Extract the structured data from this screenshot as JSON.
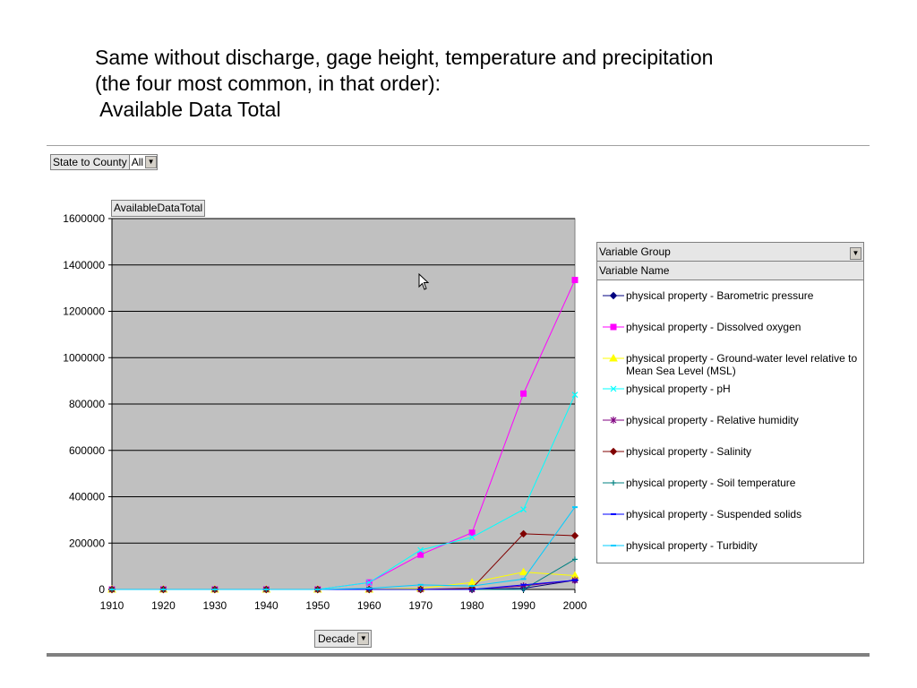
{
  "slide": {
    "title_line1": "Same without discharge, gage height, temperature and precipitation",
    "title_line2": "(the four most common, in that order):",
    "title_line3": " Available Data Total"
  },
  "pivot": {
    "page_field_label": "State to County",
    "page_field_value": "All",
    "data_field_label": "AvailableDataTotal",
    "category_field_label": "Decade",
    "legend_group_label": "Variable Group",
    "legend_name_label": "Variable Name"
  },
  "chart_data": {
    "type": "line",
    "x": [
      "1910",
      "1920",
      "1930",
      "1940",
      "1950",
      "1960",
      "1970",
      "1980",
      "1990",
      "2000"
    ],
    "ylim": [
      0,
      1600000
    ],
    "yticks": [
      "0",
      "200000",
      "400000",
      "600000",
      "800000",
      "1000000",
      "1200000",
      "1400000",
      "1600000"
    ],
    "grid": true,
    "plot_background": "#c0c0c0",
    "legend_position": "right",
    "series": [
      {
        "name": "physical property - Barometric pressure",
        "color": "#000080",
        "marker": "diamond",
        "values": [
          0,
          0,
          0,
          0,
          0,
          0,
          0,
          0,
          5000,
          40000
        ]
      },
      {
        "name": "physical property - Dissolved oxygen",
        "color": "#ff00ff",
        "marker": "square",
        "values": [
          0,
          0,
          0,
          0,
          0,
          30000,
          150000,
          245000,
          845000,
          1335000
        ]
      },
      {
        "name": "physical property - Ground-water level relative to Mean Sea Level (MSL)",
        "color": "#ffff00",
        "marker": "triangle",
        "values": [
          0,
          0,
          0,
          0,
          0,
          0,
          5000,
          30000,
          75000,
          60000
        ]
      },
      {
        "name": "physical property - pH",
        "color": "#00ffff",
        "marker": "x",
        "values": [
          0,
          0,
          0,
          0,
          0,
          30000,
          170000,
          225000,
          345000,
          840000
        ]
      },
      {
        "name": "physical property - Relative humidity",
        "color": "#800080",
        "marker": "star",
        "values": [
          0,
          0,
          0,
          0,
          0,
          0,
          0,
          0,
          15000,
          40000
        ]
      },
      {
        "name": "physical property - Salinity",
        "color": "#800000",
        "marker": "diamond",
        "values": [
          0,
          0,
          0,
          0,
          0,
          0,
          0,
          5000,
          240000,
          232000
        ]
      },
      {
        "name": "physical property - Soil temperature",
        "color": "#008080",
        "marker": "plus",
        "values": [
          0,
          0,
          0,
          0,
          0,
          0,
          0,
          0,
          0,
          130000
        ]
      },
      {
        "name": "physical property - Suspended solids",
        "color": "#0000ff",
        "marker": "dash",
        "values": [
          0,
          0,
          0,
          0,
          0,
          0,
          0,
          0,
          20000,
          40000
        ]
      },
      {
        "name": "physical property - Turbidity",
        "color": "#00ccff",
        "marker": "dash",
        "values": [
          0,
          0,
          0,
          0,
          0,
          5000,
          20000,
          15000,
          45000,
          355000
        ]
      }
    ]
  }
}
